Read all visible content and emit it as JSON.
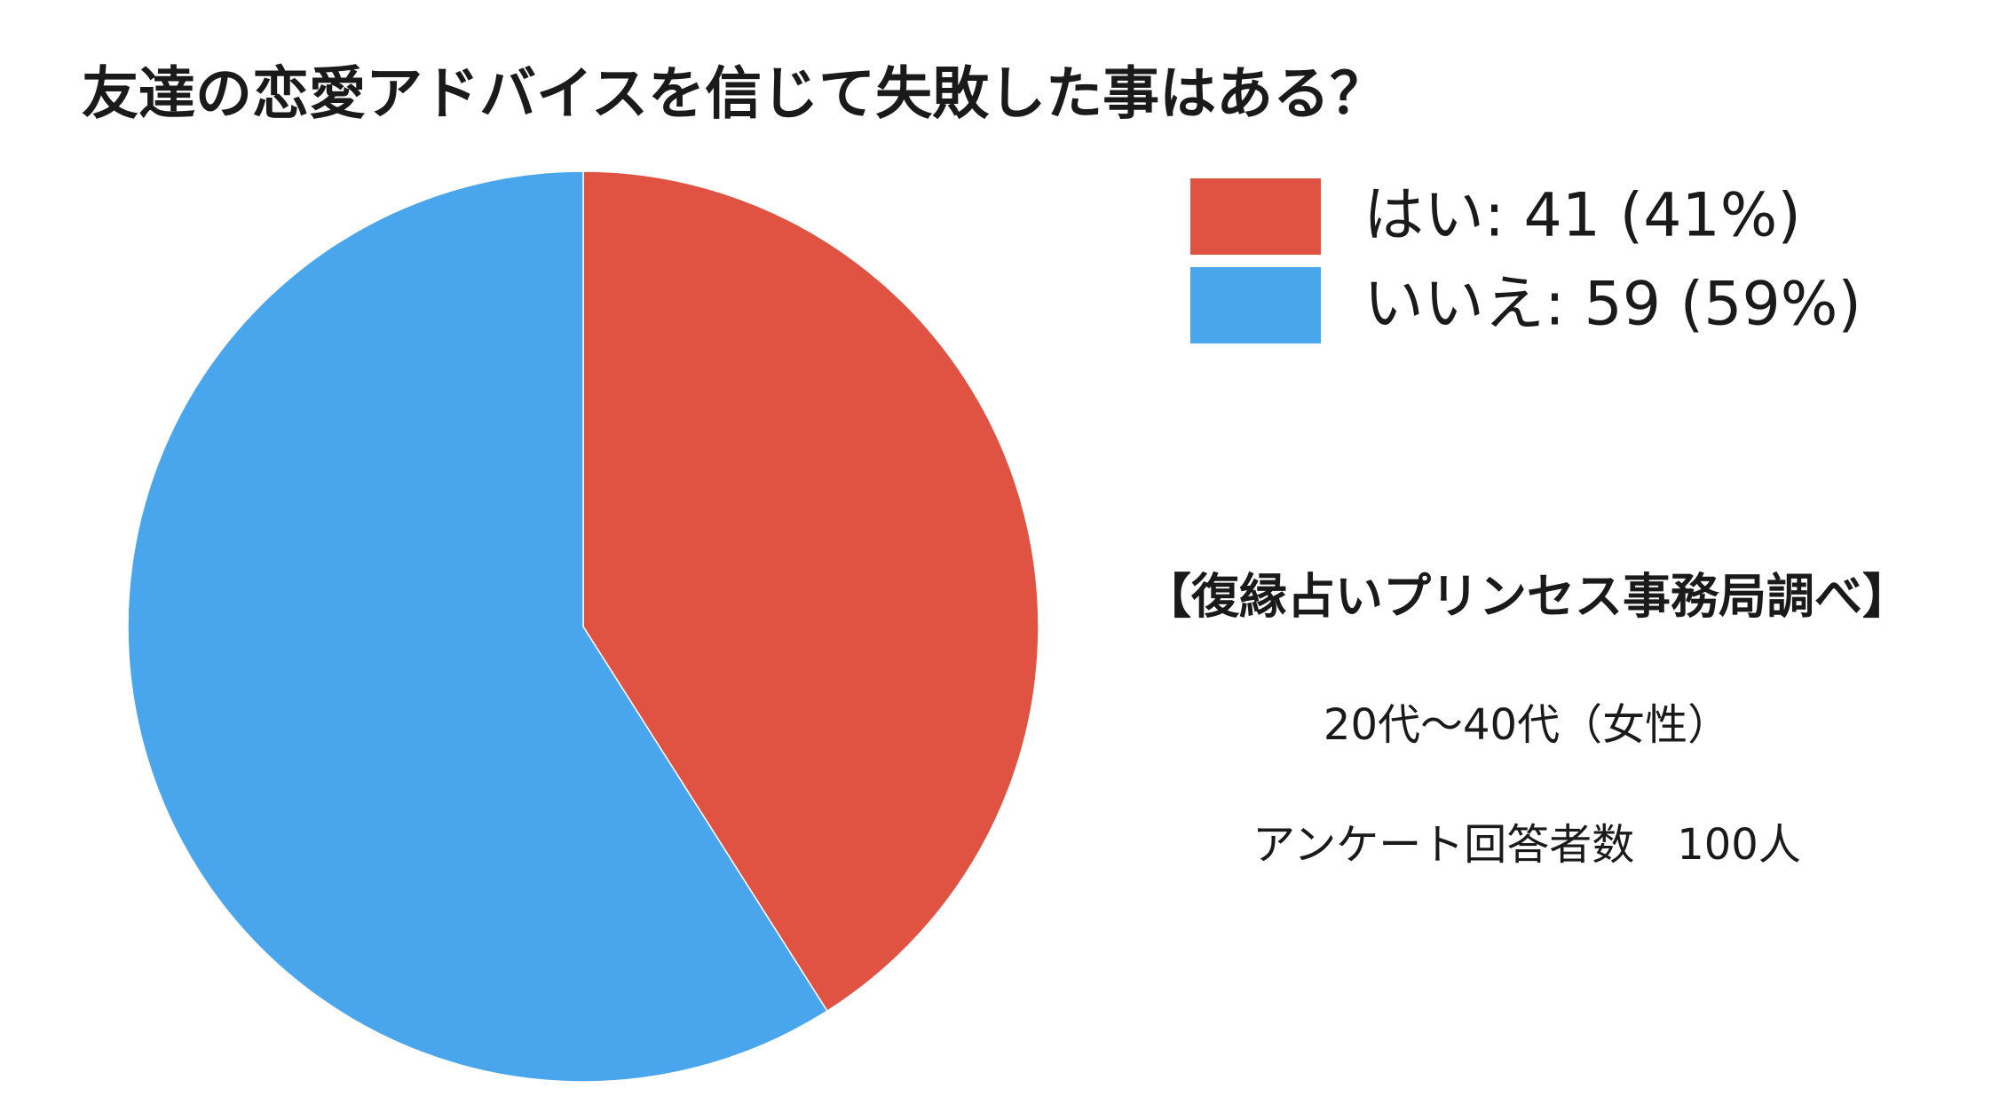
{
  "chart_data": {
    "type": "pie",
    "title": "友達の恋愛アドバイスを信じて失敗した事はある？",
    "categories": [
      "はい: 41 (41%)",
      "いいえ: 59 (59%)"
    ],
    "values": [
      41,
      59
    ],
    "colors": [
      "#e05343",
      "#4aa6ec"
    ],
    "legend": "right",
    "annotations": [
      "【復縁占いプリンセス事務局調べ】",
      "20代〜40代（女性）",
      "アンケート回答者数　100人"
    ]
  }
}
